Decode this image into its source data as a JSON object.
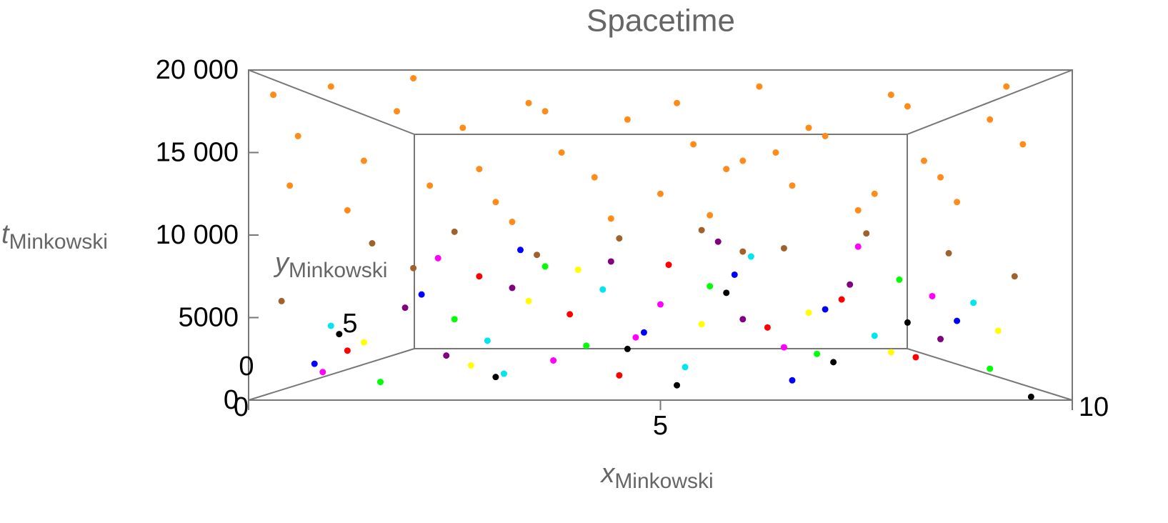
{
  "chart_data": {
    "type": "scatter3d",
    "title": "Spacetime",
    "xlabel": "x",
    "xlabel_sub": "Minkowski",
    "ylabel": "y",
    "ylabel_sub": "Minkowski",
    "zlabel": "t",
    "zlabel_sub": "Minkowski",
    "xlim": [
      0,
      10
    ],
    "xticks": [
      0,
      5,
      10
    ],
    "ylim": [
      0,
      10
    ],
    "yticks": [
      0,
      5
    ],
    "zlim": [
      0,
      20000
    ],
    "zticks": [
      0,
      5000,
      {
        "value": 10000,
        "label": "10 000"
      },
      {
        "value": 15000,
        "label": "15 000"
      },
      {
        "value": 20000,
        "label": "20 000"
      }
    ],
    "series": [
      {
        "color": "#ff8c1a",
        "x": [
          0.3,
          0.6,
          1.0,
          1.4,
          1.8,
          2.2,
          2.6,
          3.0,
          3.4,
          3.8,
          4.2,
          4.6,
          5.0,
          5.4,
          5.8,
          6.2,
          6.6,
          7.0,
          7.4,
          7.8,
          8.2,
          8.6,
          9.0,
          9.4,
          0.5,
          1.2,
          2.0,
          2.8,
          3.6,
          4.4,
          5.2,
          6.0,
          6.8,
          7.6,
          8.4,
          9.2,
          3.2,
          5.6,
          6.4,
          8.0
        ],
        "values": [
          18500,
          16000,
          19000,
          14500,
          17500,
          13000,
          16500,
          12000,
          18000,
          15000,
          13500,
          17000,
          12500,
          15500,
          14000,
          19000,
          13000,
          16000,
          11500,
          18500,
          14500,
          12000,
          17000,
          15500,
          13000,
          11500,
          19500,
          14000,
          17500,
          11000,
          18000,
          14500,
          16500,
          12500,
          13500,
          19000,
          10800,
          11200,
          15000,
          17800
        ]
      },
      {
        "color": "#a0622d",
        "x": [
          0.4,
          1.5,
          2.5,
          3.5,
          4.5,
          5.5,
          6.5,
          7.5,
          8.5,
          9.3,
          2.0,
          6.0
        ],
        "values": [
          6000,
          9500,
          10200,
          8800,
          9800,
          10300,
          9200,
          10100,
          8900,
          7500,
          8000,
          9000
        ]
      },
      {
        "color": "#ff0000",
        "x": [
          1.2,
          2.8,
          3.9,
          5.1,
          6.3,
          7.2,
          8.1,
          4.5
        ],
        "values": [
          3000,
          7500,
          5200,
          8200,
          4400,
          6100,
          2600,
          1500
        ]
      },
      {
        "color": "#0000ff",
        "x": [
          0.8,
          2.1,
          3.3,
          4.8,
          5.9,
          7.0,
          8.6,
          6.6
        ],
        "values": [
          2200,
          6400,
          9100,
          4100,
          7600,
          5500,
          4800,
          1200
        ]
      },
      {
        "color": "#00ff00",
        "x": [
          1.6,
          2.5,
          4.1,
          5.6,
          6.9,
          7.9,
          9.0,
          3.6
        ],
        "values": [
          1100,
          4900,
          3300,
          6900,
          2800,
          7300,
          1900,
          8100
        ]
      },
      {
        "color": "#00e5ee",
        "x": [
          1.0,
          2.9,
          4.3,
          5.3,
          6.1,
          7.6,
          8.8,
          3.1
        ],
        "values": [
          4500,
          3600,
          6700,
          2000,
          8700,
          3900,
          5900,
          1600
        ]
      },
      {
        "color": "#ff00ff",
        "x": [
          0.9,
          2.3,
          3.7,
          5.0,
          6.5,
          7.4,
          8.3,
          4.7
        ],
        "values": [
          1700,
          8600,
          2400,
          5800,
          3200,
          9300,
          6300,
          3800
        ]
      },
      {
        "color": "#ffff00",
        "x": [
          1.4,
          2.7,
          4.0,
          5.5,
          6.8,
          7.8,
          9.1,
          3.4
        ],
        "values": [
          3500,
          2100,
          7900,
          4600,
          5300,
          2900,
          4200,
          6000
        ]
      },
      {
        "color": "#000000",
        "x": [
          1.1,
          3.0,
          4.6,
          5.8,
          7.1,
          8.0,
          9.5,
          5.2
        ],
        "values": [
          4000,
          1400,
          3100,
          6500,
          2300,
          4700,
          200,
          900
        ]
      },
      {
        "color": "#800080",
        "x": [
          1.9,
          3.2,
          4.4,
          6.0,
          7.3,
          8.4,
          2.4,
          5.7
        ],
        "values": [
          5600,
          6800,
          8400,
          4900,
          7000,
          3700,
          2700,
          9600
        ]
      }
    ]
  }
}
